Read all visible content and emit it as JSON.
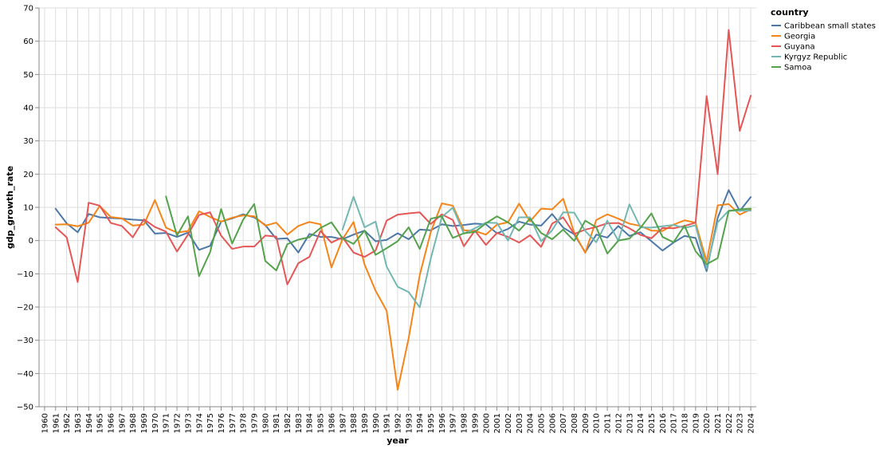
{
  "chart_data": {
    "type": "line",
    "title": "",
    "xlabel": "year",
    "ylabel": "gdp_growth_rate",
    "ylim": [
      -50,
      70
    ],
    "yticks": [
      -50,
      -40,
      -30,
      -20,
      -10,
      0,
      10,
      20,
      30,
      40,
      50,
      60,
      70
    ],
    "grid": true,
    "legend": {
      "title": "country",
      "placement": "top-right"
    },
    "x": [
      1960,
      1961,
      1962,
      1963,
      1964,
      1965,
      1966,
      1967,
      1968,
      1969,
      1970,
      1971,
      1972,
      1973,
      1974,
      1975,
      1976,
      1977,
      1978,
      1979,
      1980,
      1981,
      1982,
      1983,
      1984,
      1985,
      1986,
      1987,
      1988,
      1989,
      1990,
      1991,
      1992,
      1993,
      1994,
      1995,
      1996,
      1997,
      1998,
      1999,
      2000,
      2001,
      2002,
      2003,
      2004,
      2005,
      2006,
      2007,
      2008,
      2009,
      2010,
      2011,
      2012,
      2013,
      2014,
      2015,
      2016,
      2017,
      2018,
      2019,
      2020,
      2021,
      2022,
      2023,
      2024
    ],
    "series": [
      {
        "name": "Caribbean small states",
        "color": "#4c78a8",
        "values": [
          null,
          9.6,
          5.2,
          2.5,
          8.0,
          7.0,
          6.8,
          6.6,
          6.3,
          6.1,
          2.1,
          2.3,
          1.1,
          2.4,
          -2.8,
          -1.6,
          5.7,
          6.7,
          7.9,
          7.0,
          4.7,
          0.5,
          0.7,
          -3.6,
          2.0,
          1.1,
          1.1,
          0.4,
          1.8,
          3.0,
          -0.2,
          0.2,
          2.2,
          0.4,
          3.3,
          3.1,
          4.9,
          4.4,
          4.7,
          5.1,
          4.9,
          2.2,
          3.5,
          5.7,
          4.8,
          4.5,
          8.0,
          3.9,
          1.9,
          -3.5,
          1.8,
          0.9,
          4.4,
          1.4,
          2.5,
          -0.2,
          -3.0,
          -0.6,
          1.4,
          0.8,
          -9.2,
          6.8,
          15.2,
          8.9,
          13.1
        ]
      },
      {
        "name": "Georgia",
        "color": "#f58518",
        "values": [
          null,
          4.8,
          4.9,
          4.3,
          5.4,
          10.4,
          7.1,
          6.7,
          4.5,
          4.8,
          12.2,
          3.9,
          2.4,
          2.9,
          8.8,
          7.1,
          5.7,
          6.9,
          7.6,
          7.3,
          4.5,
          5.4,
          1.8,
          4.4,
          5.6,
          4.9,
          -8.1,
          0.4,
          5.6,
          -7.2,
          -15.1,
          -21.1,
          -44.9,
          -29.3,
          -10.4,
          2.6,
          11.2,
          10.5,
          3.1,
          2.9,
          1.8,
          4.8,
          5.5,
          11.1,
          5.8,
          9.6,
          9.4,
          12.6,
          2.4,
          -3.7,
          6.2,
          7.9,
          6.6,
          5.1,
          4.4,
          3.0,
          2.9,
          4.8,
          6.1,
          5.4,
          -6.3,
          10.6,
          11.0,
          7.8,
          9.4
        ]
      },
      {
        "name": "Guyana",
        "color": "#e45756",
        "values": [
          null,
          4.0,
          1.0,
          -12.5,
          11.4,
          10.5,
          5.3,
          4.4,
          1.0,
          6.4,
          4.1,
          2.7,
          -3.3,
          1.8,
          7.7,
          8.5,
          1.5,
          -2.5,
          -1.8,
          -1.8,
          1.5,
          1.2,
          -13.2,
          -6.8,
          -4.9,
          2.9,
          -0.6,
          1.0,
          -3.6,
          -4.9,
          -3.0,
          6.0,
          7.8,
          8.2,
          8.5,
          5.0,
          7.9,
          6.2,
          -1.7,
          3.0,
          -1.3,
          2.3,
          1.1,
          -0.6,
          1.6,
          -1.9,
          5.1,
          7.0,
          2.0,
          3.3,
          4.1,
          5.2,
          5.3,
          3.7,
          1.7,
          0.7,
          3.8,
          3.7,
          4.4,
          5.4,
          43.5,
          20.0,
          63.4,
          33.0,
          43.6
        ]
      },
      {
        "name": "Kyrgyz Republic",
        "color": "#72b7b2",
        "values": [
          null,
          null,
          null,
          null,
          null,
          null,
          null,
          null,
          null,
          null,
          null,
          null,
          null,
          null,
          null,
          null,
          null,
          null,
          null,
          null,
          null,
          null,
          null,
          null,
          null,
          null,
          null,
          3.3,
          13.2,
          4.0,
          5.7,
          -7.8,
          -13.9,
          -15.5,
          -20.1,
          -5.4,
          7.1,
          9.9,
          2.1,
          3.7,
          5.4,
          5.3,
          0.0,
          7.0,
          7.0,
          -0.2,
          3.1,
          8.5,
          8.4,
          2.9,
          -0.5,
          6.0,
          -0.1,
          10.9,
          4.0,
          3.9,
          4.3,
          4.7,
          3.8,
          4.6,
          -8.4,
          5.5,
          9.0,
          9.0,
          9.0
        ]
      },
      {
        "name": "Samoa",
        "color": "#54a24b",
        "values": [
          null,
          null,
          null,
          null,
          null,
          null,
          null,
          null,
          null,
          null,
          null,
          13.3,
          1.5,
          7.3,
          -10.7,
          -3.5,
          9.5,
          -0.9,
          6.3,
          11.0,
          -6.1,
          -9.0,
          -1.1,
          0.3,
          1.0,
          3.8,
          5.5,
          0.7,
          -1.0,
          3.0,
          -4.3,
          -2.3,
          -0.2,
          4.0,
          -2.5,
          6.6,
          7.3,
          0.8,
          2.2,
          2.6,
          5.2,
          7.3,
          5.5,
          3.0,
          6.6,
          2.3,
          0.4,
          3.3,
          -0.1,
          6.0,
          4.0,
          -3.9,
          0.0,
          0.6,
          3.8,
          8.2,
          1.1,
          -0.5,
          4.5,
          -3.2,
          -7.1,
          -5.3,
          8.9,
          9.4,
          9.6
        ]
      }
    ]
  }
}
